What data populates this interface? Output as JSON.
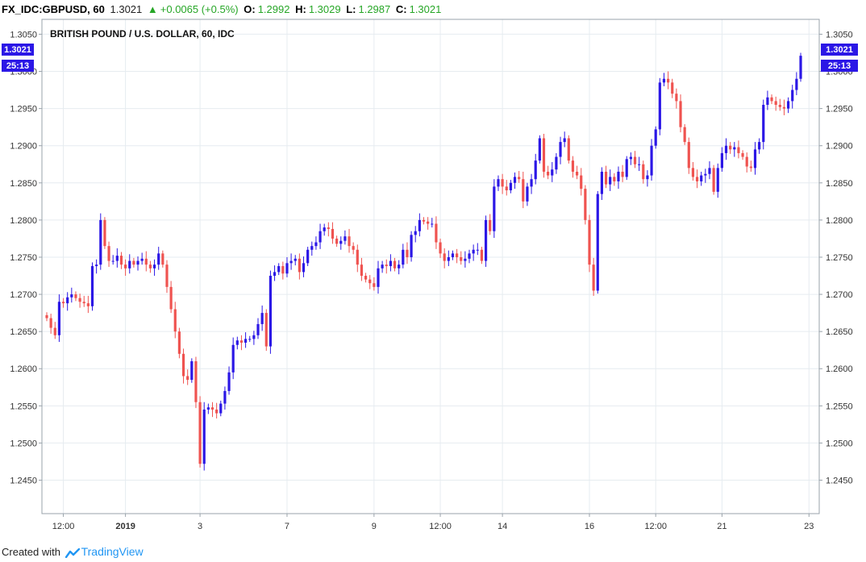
{
  "header": {
    "symbol": "FX_IDC:GBPUSD, 60",
    "last": "1.3021",
    "change": "+0.0065 (+0.5%)",
    "open_label": "O:",
    "open": "1.2992",
    "high_label": "H:",
    "high": "1.3029",
    "low_label": "L:",
    "low": "1.2987",
    "close_label": "C:",
    "close": "1.3021"
  },
  "footer": {
    "created_with": "Created with",
    "brand": "TradingView"
  },
  "badges": {
    "price": "1.3021",
    "countdown": "25:13"
  },
  "colors": {
    "up": "#2b17e6",
    "down": "#ef5350",
    "grid": "#e6ecf0",
    "badge": "#2b17e6"
  },
  "chart_data": {
    "type": "candlestick",
    "title": "BRITISH POUND / U.S. DOLLAR, 60, IDC",
    "ylim": [
      1.2405,
      1.307
    ],
    "y_ticks": [
      "1.3050",
      "1.3000",
      "1.2950",
      "1.2900",
      "1.2850",
      "1.2800",
      "1.2750",
      "1.2700",
      "1.2650",
      "1.2600",
      "1.2550",
      "1.2500",
      "1.2450"
    ],
    "x_ticks": [
      {
        "label": "12:00",
        "i": 4
      },
      {
        "label": "2019",
        "i": 19,
        "bold": true
      },
      {
        "label": "3",
        "i": 37
      },
      {
        "label": "7",
        "i": 58
      },
      {
        "label": "9",
        "i": 79
      },
      {
        "label": "12:00",
        "i": 95
      },
      {
        "label": "14",
        "i": 110
      },
      {
        "label": "16",
        "i": 131
      },
      {
        "label": "12:00",
        "i": 147
      },
      {
        "label": "21",
        "i": 163
      },
      {
        "label": "23",
        "i": 184
      }
    ],
    "close": [
      1.2668,
      1.2655,
      1.2645,
      1.269,
      1.2688,
      1.2696,
      1.27,
      1.2695,
      1.269,
      1.2688,
      1.2684,
      1.2738,
      1.274,
      1.28,
      1.2765,
      1.2745,
      1.2745,
      1.2752,
      1.274,
      1.2735,
      1.2745,
      1.274,
      1.2745,
      1.2748,
      1.274,
      1.2735,
      1.274,
      1.2755,
      1.274,
      1.271,
      1.268,
      1.265,
      1.262,
      1.259,
      1.2585,
      1.261,
      1.2555,
      1.2472,
      1.2545,
      1.2548,
      1.2545,
      1.254,
      1.2553,
      1.257,
      1.2595,
      1.2632,
      1.2638,
      1.2635,
      1.264,
      1.264,
      1.2645,
      1.266,
      1.2675,
      1.263,
      1.2725,
      1.273,
      1.2738,
      1.2728,
      1.2742,
      1.2745,
      1.2748,
      1.273,
      1.2742,
      1.276,
      1.2765,
      1.277,
      1.2785,
      1.279,
      1.2788,
      1.2775,
      1.2768,
      1.2772,
      1.2778,
      1.2765,
      1.276,
      1.274,
      1.2725,
      1.272,
      1.2715,
      1.271,
      1.2735,
      1.274,
      1.2738,
      1.2745,
      1.2735,
      1.274,
      1.276,
      1.275,
      1.278,
      1.2785,
      1.28,
      1.2798,
      1.2795,
      1.2795,
      1.277,
      1.2755,
      1.2745,
      1.275,
      1.2755,
      1.275,
      1.2745,
      1.2748,
      1.2755,
      1.276,
      1.276,
      1.2745,
      1.28,
      1.2785,
      1.2845,
      1.2855,
      1.2845,
      1.284,
      1.285,
      1.2858,
      1.2855,
      1.2825,
      1.2845,
      1.2855,
      1.288,
      1.291,
      1.2865,
      1.286,
      1.2868,
      1.2885,
      1.2905,
      1.291,
      1.288,
      1.2865,
      1.286,
      1.2842,
      1.28,
      1.274,
      1.2705,
      1.2835,
      1.2865,
      1.2848,
      1.2858,
      1.2852,
      1.2865,
      1.2858,
      1.2882,
      1.2885,
      1.2875,
      1.2875,
      1.2855,
      1.286,
      1.29,
      1.2922,
      1.2985,
      1.299,
      1.2985,
      1.297,
      1.296,
      1.2925,
      1.2905,
      1.287,
      1.2858,
      1.2852,
      1.286,
      1.2862,
      1.287,
      1.2838,
      1.287,
      1.289,
      1.29,
      1.2895,
      1.2898,
      1.289,
      1.2885,
      1.2872,
      1.287,
      1.2895,
      1.2905,
      1.2955,
      1.2965,
      1.296,
      1.2955,
      1.2952,
      1.295,
      1.296,
      1.2975,
      1.299,
      1.3021
    ]
  }
}
